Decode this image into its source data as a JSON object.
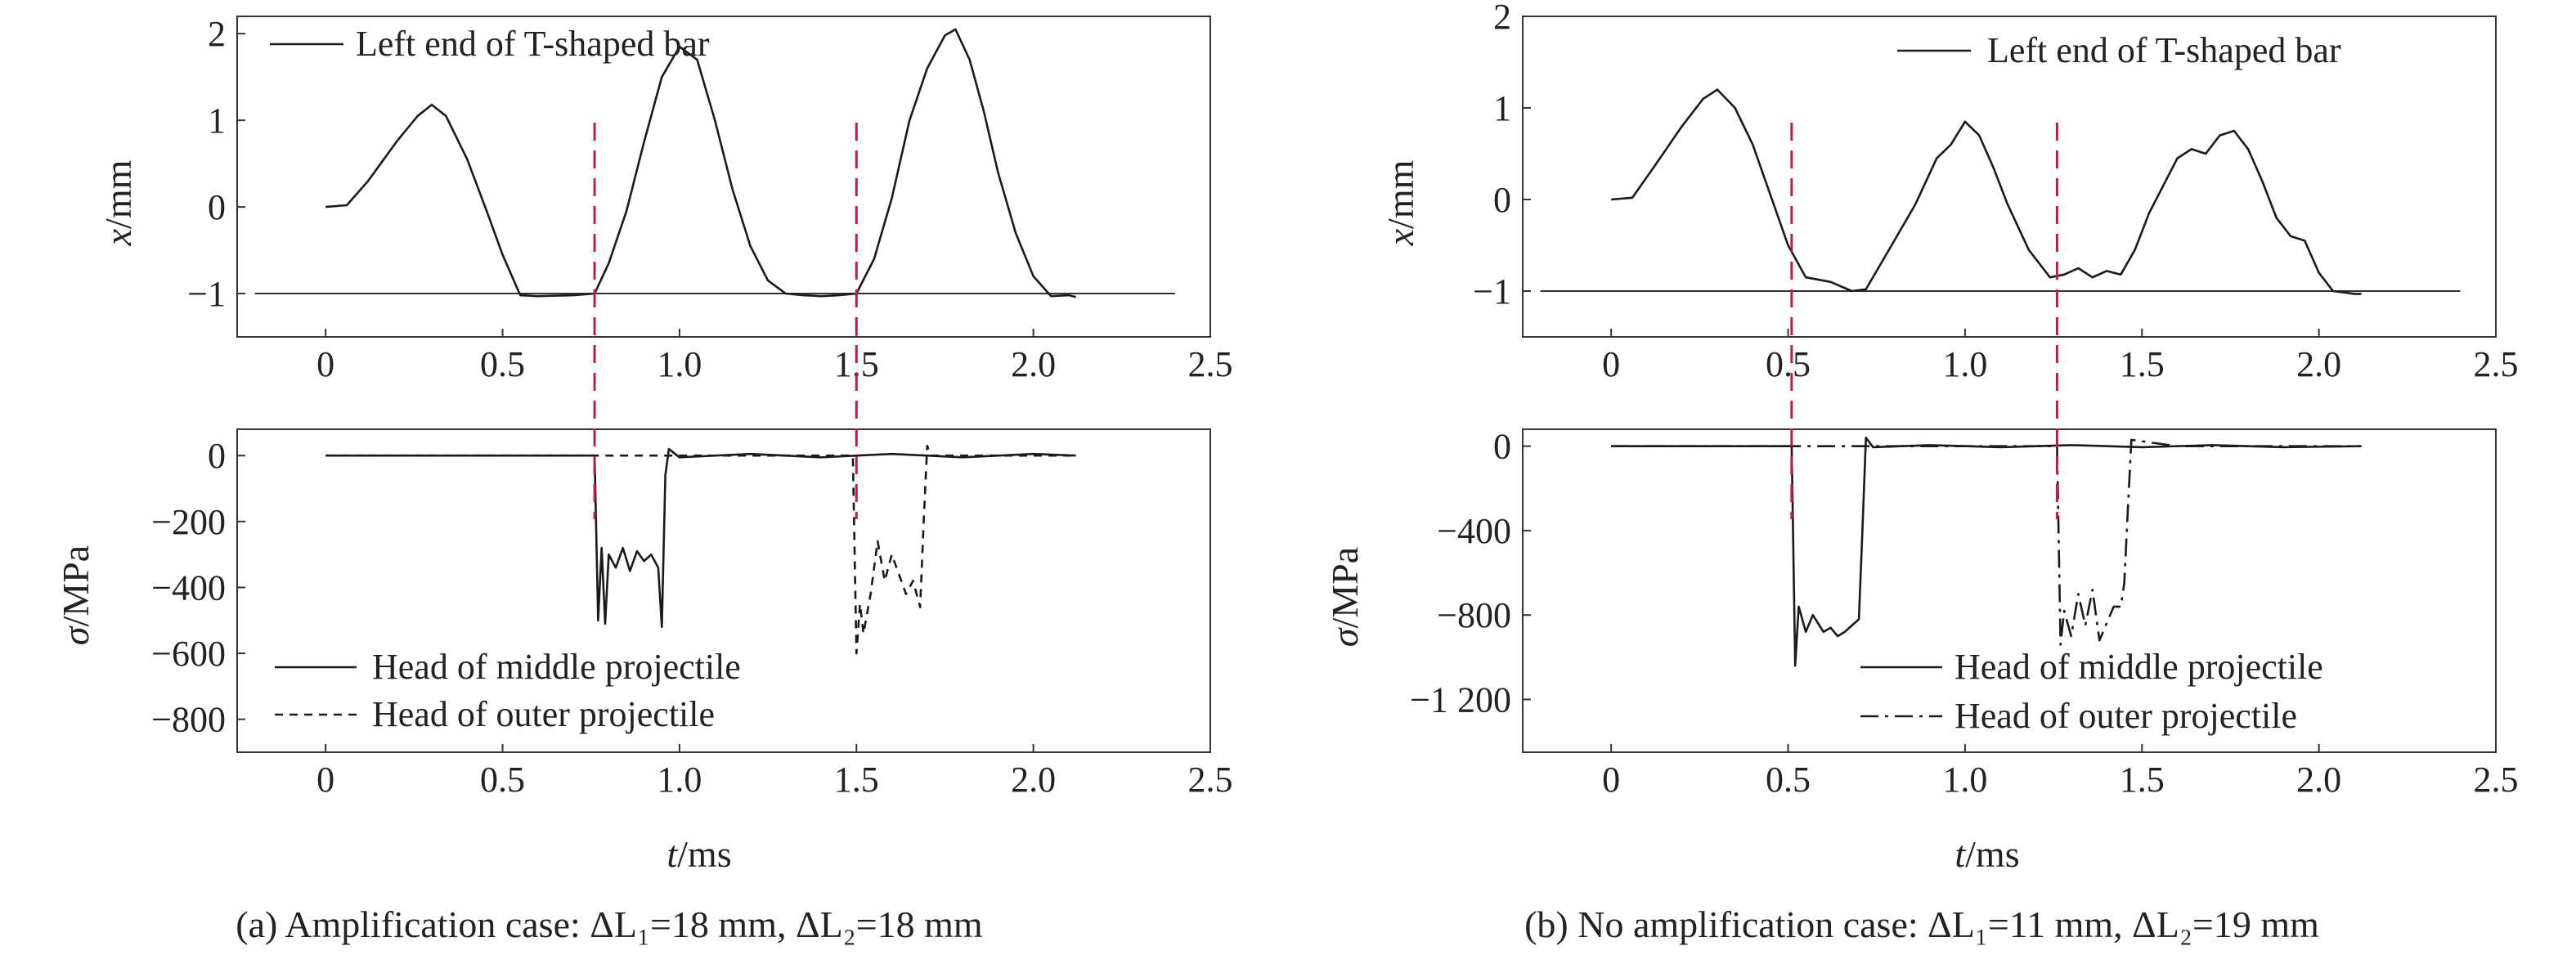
{
  "panels": [
    {
      "caption": "(a) Amplification case: ΔL₁=18 mm, ΔL₂=18 mm",
      "top": {
        "ylabel_var": "x",
        "ylabel_unit": "/mm",
        "legend": [
          "Left end of T-shaped bar"
        ]
      },
      "bottom": {
        "ylabel_var": "σ",
        "ylabel_unit": "/MPa",
        "xlabel_var": "t",
        "xlabel_unit": "/ms",
        "legend": [
          "Head of middle projectile",
          "Head of outer projectile"
        ]
      }
    },
    {
      "caption": "(b) No amplification case: ΔL₁=11 mm, ΔL₂=19 mm",
      "top": {
        "ylabel_var": "x",
        "ylabel_unit": "/mm",
        "legend": [
          "Left end of T-shaped bar"
        ]
      },
      "bottom": {
        "ylabel_var": "σ",
        "ylabel_unit": "/MPa",
        "xlabel_var": "t",
        "xlabel_unit": "/ms",
        "legend": [
          "Head of middle projectile",
          "Head of outer projectile"
        ]
      }
    }
  ],
  "chart_data": [
    {
      "type": "line",
      "panel": "a-top",
      "ylabel": "x/mm",
      "xlim": [
        -0.25,
        2.5
      ],
      "ylim": [
        -1.5,
        2.2
      ],
      "xticks": [
        "0",
        "0.5",
        "1.0",
        "1.5",
        "2.0",
        "2.5"
      ],
      "yticks": [
        "−1",
        "0",
        "1",
        "2"
      ],
      "reference_line_y": -1,
      "marker_lines_x": [
        0.76,
        1.5
      ],
      "marker_color": "#c2185b",
      "series": [
        {
          "name": "Left end of T-shaped bar",
          "x": [
            0,
            0.06,
            0.12,
            0.2,
            0.26,
            0.3,
            0.34,
            0.4,
            0.46,
            0.5,
            0.55,
            0.6,
            0.7,
            0.76,
            0.8,
            0.85,
            0.9,
            0.95,
            1.0,
            1.05,
            1.1,
            1.15,
            1.2,
            1.25,
            1.3,
            1.35,
            1.4,
            1.45,
            1.5,
            1.55,
            1.6,
            1.65,
            1.7,
            1.75,
            1.78,
            1.82,
            1.86,
            1.9,
            1.95,
            2.0,
            2.05,
            2.1,
            2.12
          ],
          "y": [
            0,
            0.02,
            0.3,
            0.75,
            1.05,
            1.18,
            1.05,
            0.55,
            -0.1,
            -0.55,
            -1.02,
            -1.03,
            -1.02,
            -1.0,
            -0.65,
            -0.05,
            0.75,
            1.5,
            1.85,
            1.7,
            1.0,
            0.2,
            -0.45,
            -0.85,
            -1.0,
            -1.02,
            -1.03,
            -1.02,
            -1.0,
            -0.6,
            0.1,
            1.0,
            1.6,
            1.98,
            2.05,
            1.7,
            1.1,
            0.4,
            -0.3,
            -0.8,
            -1.03,
            -1.02,
            -1.04
          ]
        }
      ]
    },
    {
      "type": "line",
      "panel": "a-bottom",
      "xlabel": "t/ms",
      "ylabel": "σ/MPa",
      "xlim": [
        -0.25,
        2.5
      ],
      "ylim": [
        -900,
        80
      ],
      "xticks": [
        "0",
        "0.5",
        "1.0",
        "1.5",
        "2.0",
        "2.5"
      ],
      "yticks": [
        "0",
        "−200",
        "−400",
        "−600",
        "−800"
      ],
      "series": [
        {
          "name": "Head of middle projectile",
          "style": "solid",
          "x": [
            0,
            0.76,
            0.77,
            0.78,
            0.79,
            0.8,
            0.82,
            0.84,
            0.86,
            0.88,
            0.9,
            0.92,
            0.94,
            0.95,
            0.96,
            0.97,
            1.0,
            1.2,
            1.4,
            1.6,
            1.8,
            2.0,
            2.12
          ],
          "y": [
            0,
            0,
            -500,
            -280,
            -510,
            -300,
            -340,
            -280,
            -350,
            -290,
            -320,
            -300,
            -340,
            -520,
            -60,
            20,
            -5,
            5,
            -5,
            5,
            -5,
            5,
            0
          ]
        },
        {
          "name": "Head of outer projectile",
          "style": "dashed",
          "x": [
            0,
            0.97,
            1.49,
            1.5,
            1.51,
            1.52,
            1.54,
            1.56,
            1.58,
            1.6,
            1.62,
            1.64,
            1.66,
            1.68,
            1.69,
            1.7,
            1.71,
            1.8,
            2.0,
            2.12
          ],
          "y": [
            0,
            0,
            0,
            -600,
            -450,
            -540,
            -420,
            -260,
            -380,
            -300,
            -360,
            -420,
            -380,
            -460,
            -200,
            30,
            0,
            0,
            0,
            0
          ]
        }
      ]
    },
    {
      "type": "line",
      "panel": "b-top",
      "ylabel": "x/mm",
      "xlim": [
        -0.25,
        2.5
      ],
      "ylim": [
        -1.5,
        2.0
      ],
      "xticks": [
        "0",
        "0.5",
        "1.0",
        "1.5",
        "2.0",
        "2.5"
      ],
      "yticks": [
        "−1",
        "0",
        "1",
        "2"
      ],
      "reference_line_y": -1,
      "marker_lines_x": [
        0.51,
        1.26
      ],
      "marker_color": "#c2185b",
      "series": [
        {
          "name": "Left end of T-shaped bar",
          "x": [
            0,
            0.06,
            0.12,
            0.2,
            0.26,
            0.3,
            0.35,
            0.4,
            0.45,
            0.5,
            0.55,
            0.62,
            0.68,
            0.72,
            0.8,
            0.86,
            0.92,
            0.96,
            1.0,
            1.04,
            1.08,
            1.12,
            1.18,
            1.24,
            1.28,
            1.32,
            1.36,
            1.4,
            1.44,
            1.48,
            1.52,
            1.56,
            1.6,
            1.64,
            1.68,
            1.72,
            1.76,
            1.8,
            1.84,
            1.88,
            1.92,
            1.96,
            2.0,
            2.04,
            2.08,
            2.1,
            2.12
          ],
          "y": [
            0,
            0.02,
            0.35,
            0.8,
            1.1,
            1.2,
            1.0,
            0.6,
            0.05,
            -0.5,
            -0.85,
            -0.9,
            -1.0,
            -0.98,
            -0.45,
            -0.05,
            0.45,
            0.6,
            0.85,
            0.7,
            0.35,
            -0.05,
            -0.55,
            -0.85,
            -0.82,
            -0.75,
            -0.85,
            -0.78,
            -0.82,
            -0.55,
            -0.15,
            0.15,
            0.45,
            0.55,
            0.5,
            0.7,
            0.75,
            0.55,
            0.2,
            -0.2,
            -0.4,
            -0.45,
            -0.8,
            -1.0,
            -1.02,
            -1.03,
            -1.03
          ]
        }
      ]
    },
    {
      "type": "line",
      "panel": "b-bottom",
      "xlabel": "t/ms",
      "ylabel": "σ/MPa",
      "xlim": [
        -0.25,
        2.5
      ],
      "ylim": [
        -1450,
        80
      ],
      "xticks": [
        "0",
        "0.5",
        "1.0",
        "1.5",
        "2.0",
        "2.5"
      ],
      "yticks": [
        "0",
        "−400",
        "−800",
        "−1 200"
      ],
      "series": [
        {
          "name": "Head of middle projectile",
          "style": "solid",
          "x": [
            0,
            0.51,
            0.52,
            0.53,
            0.55,
            0.57,
            0.6,
            0.62,
            0.64,
            0.66,
            0.68,
            0.7,
            0.71,
            0.72,
            0.74,
            0.9,
            1.1,
            1.3,
            1.5,
            1.7,
            1.9,
            2.12
          ],
          "y": [
            0,
            0,
            -1040,
            -760,
            -880,
            -800,
            -880,
            -860,
            -900,
            -880,
            -850,
            -820,
            -400,
            40,
            -5,
            5,
            -5,
            5,
            -5,
            5,
            -5,
            0
          ]
        },
        {
          "name": "Head of outer projectile",
          "style": "dashdot",
          "x": [
            0,
            0.72,
            1.26,
            1.27,
            1.28,
            1.3,
            1.32,
            1.34,
            1.36,
            1.38,
            1.4,
            1.42,
            1.44,
            1.45,
            1.46,
            1.47,
            1.6,
            1.8,
            2.0,
            2.12
          ],
          "y": [
            0,
            0,
            0,
            -940,
            -780,
            -900,
            -700,
            -850,
            -680,
            -920,
            -840,
            -760,
            -760,
            -650,
            -300,
            30,
            0,
            0,
            0,
            0
          ]
        }
      ]
    }
  ]
}
